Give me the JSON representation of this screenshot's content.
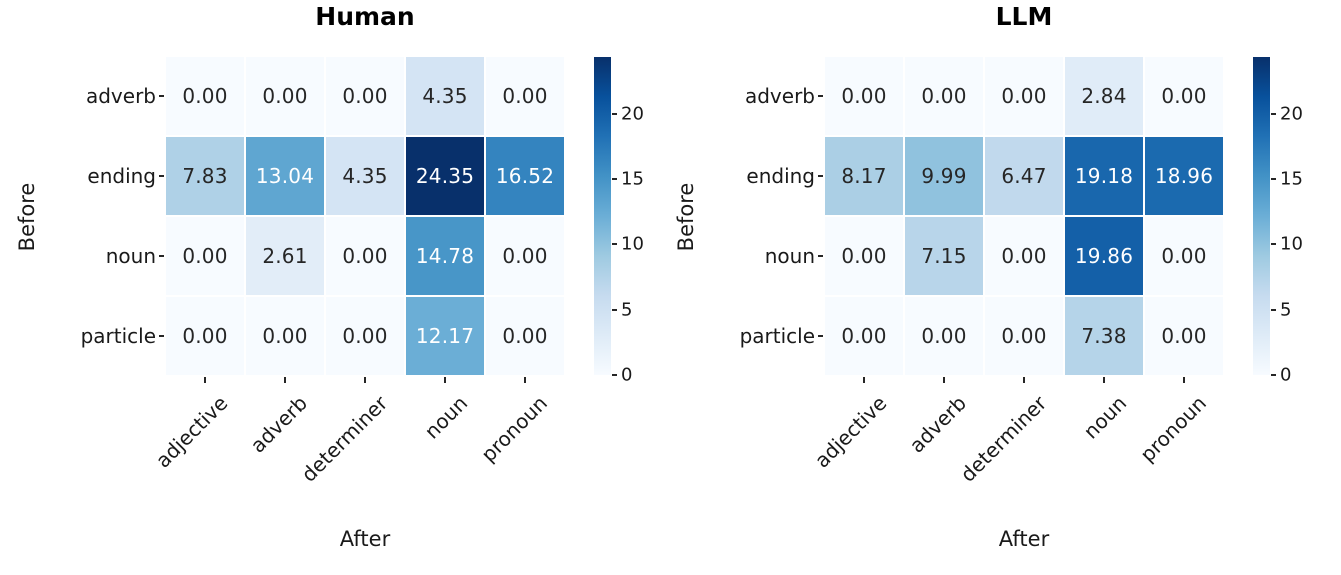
{
  "figure": {
    "background_color": "#ffffff",
    "colormap_name": "Blues",
    "colormap_stops": [
      "#f7fbff",
      "#deebf7",
      "#c6dbef",
      "#9ecae1",
      "#6baed6",
      "#4292c6",
      "#2171b5",
      "#08519c",
      "#08306b"
    ],
    "annotation_dark_text_color": "#262626",
    "annotation_light_text_color": "#ffffff",
    "tick_color": "#262626"
  },
  "chart_data": [
    {
      "type": "heatmap",
      "title": "Human",
      "xlabel": "After",
      "ylabel": "Before",
      "x_tick_labels": [
        "adjective",
        "adverb",
        "determiner",
        "noun",
        "pronoun"
      ],
      "y_tick_labels": [
        "adverb",
        "ending",
        "noun",
        "particle"
      ],
      "rows": [
        [
          0.0,
          0.0,
          0.0,
          4.35,
          0.0
        ],
        [
          7.83,
          13.04,
          4.35,
          24.35,
          16.52
        ],
        [
          0.0,
          2.61,
          0.0,
          14.78,
          0.0
        ],
        [
          0.0,
          0.0,
          0.0,
          12.17,
          0.0
        ]
      ],
      "decimals": 2,
      "vmin": 0,
      "vmax": 24.35,
      "colorbar_ticks": [
        0,
        5,
        10,
        15,
        20
      ],
      "colorbar_position": "right",
      "grid": false
    },
    {
      "type": "heatmap",
      "title": "LLM",
      "xlabel": "After",
      "ylabel": "Before",
      "x_tick_labels": [
        "adjective",
        "adverb",
        "determiner",
        "noun",
        "pronoun"
      ],
      "y_tick_labels": [
        "adverb",
        "ending",
        "noun",
        "particle"
      ],
      "rows": [
        [
          0.0,
          0.0,
          0.0,
          2.84,
          0.0
        ],
        [
          8.17,
          9.99,
          6.47,
          19.18,
          18.96
        ],
        [
          0.0,
          7.15,
          0.0,
          19.86,
          0.0
        ],
        [
          0.0,
          0.0,
          0.0,
          7.38,
          0.0
        ]
      ],
      "decimals": 2,
      "vmin": 0,
      "vmax": 24.35,
      "colorbar_ticks": [
        0,
        5,
        10,
        15,
        20
      ],
      "colorbar_position": "right",
      "grid": false
    }
  ]
}
